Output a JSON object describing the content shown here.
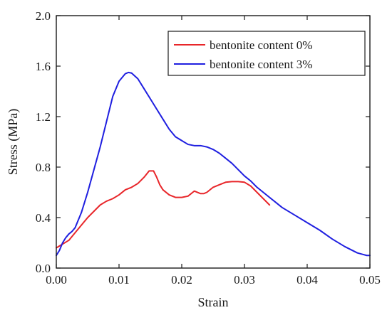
{
  "chart_data": {
    "type": "line",
    "xlabel": "Strain",
    "ylabel": "Stress (MPa)",
    "xlim": [
      0.0,
      0.05
    ],
    "ylim": [
      0.0,
      2.0
    ],
    "x_ticks": [
      "0.00",
      "0.01",
      "0.02",
      "0.03",
      "0.04",
      "0.05"
    ],
    "y_ticks": [
      "0.0",
      "0.4",
      "0.8",
      "1.2",
      "1.6",
      "2.0"
    ],
    "x_tick_values": [
      0.0,
      0.01,
      0.02,
      0.03,
      0.04,
      0.05
    ],
    "y_tick_values": [
      0.0,
      0.4,
      0.8,
      1.2,
      1.6,
      2.0
    ],
    "grid": false,
    "legend_position": "top-right",
    "series": [
      {
        "name": "bentonite content 0%",
        "color": "#e8262a",
        "points": [
          [
            0.0,
            0.16
          ],
          [
            0.001,
            0.19
          ],
          [
            0.002,
            0.22
          ],
          [
            0.003,
            0.28
          ],
          [
            0.004,
            0.34
          ],
          [
            0.005,
            0.4
          ],
          [
            0.006,
            0.45
          ],
          [
            0.007,
            0.5
          ],
          [
            0.008,
            0.53
          ],
          [
            0.009,
            0.55
          ],
          [
            0.01,
            0.58
          ],
          [
            0.011,
            0.62
          ],
          [
            0.012,
            0.64
          ],
          [
            0.013,
            0.67
          ],
          [
            0.014,
            0.72
          ],
          [
            0.0148,
            0.77
          ],
          [
            0.0155,
            0.77
          ],
          [
            0.016,
            0.72
          ],
          [
            0.0165,
            0.66
          ],
          [
            0.017,
            0.62
          ],
          [
            0.018,
            0.58
          ],
          [
            0.019,
            0.56
          ],
          [
            0.02,
            0.56
          ],
          [
            0.021,
            0.57
          ],
          [
            0.022,
            0.61
          ],
          [
            0.023,
            0.59
          ],
          [
            0.0235,
            0.59
          ],
          [
            0.024,
            0.6
          ],
          [
            0.025,
            0.64
          ],
          [
            0.026,
            0.66
          ],
          [
            0.027,
            0.68
          ],
          [
            0.028,
            0.685
          ],
          [
            0.029,
            0.685
          ],
          [
            0.03,
            0.68
          ],
          [
            0.031,
            0.65
          ],
          [
            0.032,
            0.6
          ],
          [
            0.033,
            0.55
          ],
          [
            0.034,
            0.5
          ]
        ]
      },
      {
        "name": "bentonite content 3%",
        "color": "#1f1fe0",
        "points": [
          [
            0.0,
            0.1
          ],
          [
            0.0005,
            0.14
          ],
          [
            0.001,
            0.2
          ],
          [
            0.0015,
            0.24
          ],
          [
            0.002,
            0.27
          ],
          [
            0.0025,
            0.29
          ],
          [
            0.003,
            0.32
          ],
          [
            0.004,
            0.44
          ],
          [
            0.005,
            0.6
          ],
          [
            0.006,
            0.78
          ],
          [
            0.007,
            0.96
          ],
          [
            0.008,
            1.16
          ],
          [
            0.009,
            1.36
          ],
          [
            0.01,
            1.48
          ],
          [
            0.011,
            1.54
          ],
          [
            0.0115,
            1.55
          ],
          [
            0.012,
            1.545
          ],
          [
            0.013,
            1.5
          ],
          [
            0.014,
            1.42
          ],
          [
            0.015,
            1.34
          ],
          [
            0.016,
            1.26
          ],
          [
            0.017,
            1.18
          ],
          [
            0.018,
            1.1
          ],
          [
            0.019,
            1.04
          ],
          [
            0.02,
            1.01
          ],
          [
            0.021,
            0.98
          ],
          [
            0.022,
            0.97
          ],
          [
            0.023,
            0.97
          ],
          [
            0.024,
            0.96
          ],
          [
            0.025,
            0.94
          ],
          [
            0.026,
            0.91
          ],
          [
            0.027,
            0.87
          ],
          [
            0.028,
            0.83
          ],
          [
            0.029,
            0.78
          ],
          [
            0.03,
            0.73
          ],
          [
            0.031,
            0.69
          ],
          [
            0.032,
            0.64
          ],
          [
            0.033,
            0.6
          ],
          [
            0.034,
            0.56
          ],
          [
            0.035,
            0.52
          ],
          [
            0.036,
            0.48
          ],
          [
            0.038,
            0.42
          ],
          [
            0.04,
            0.36
          ],
          [
            0.042,
            0.3
          ],
          [
            0.044,
            0.23
          ],
          [
            0.046,
            0.17
          ],
          [
            0.048,
            0.12
          ],
          [
            0.0495,
            0.1
          ],
          [
            0.05,
            0.1
          ]
        ]
      }
    ]
  }
}
